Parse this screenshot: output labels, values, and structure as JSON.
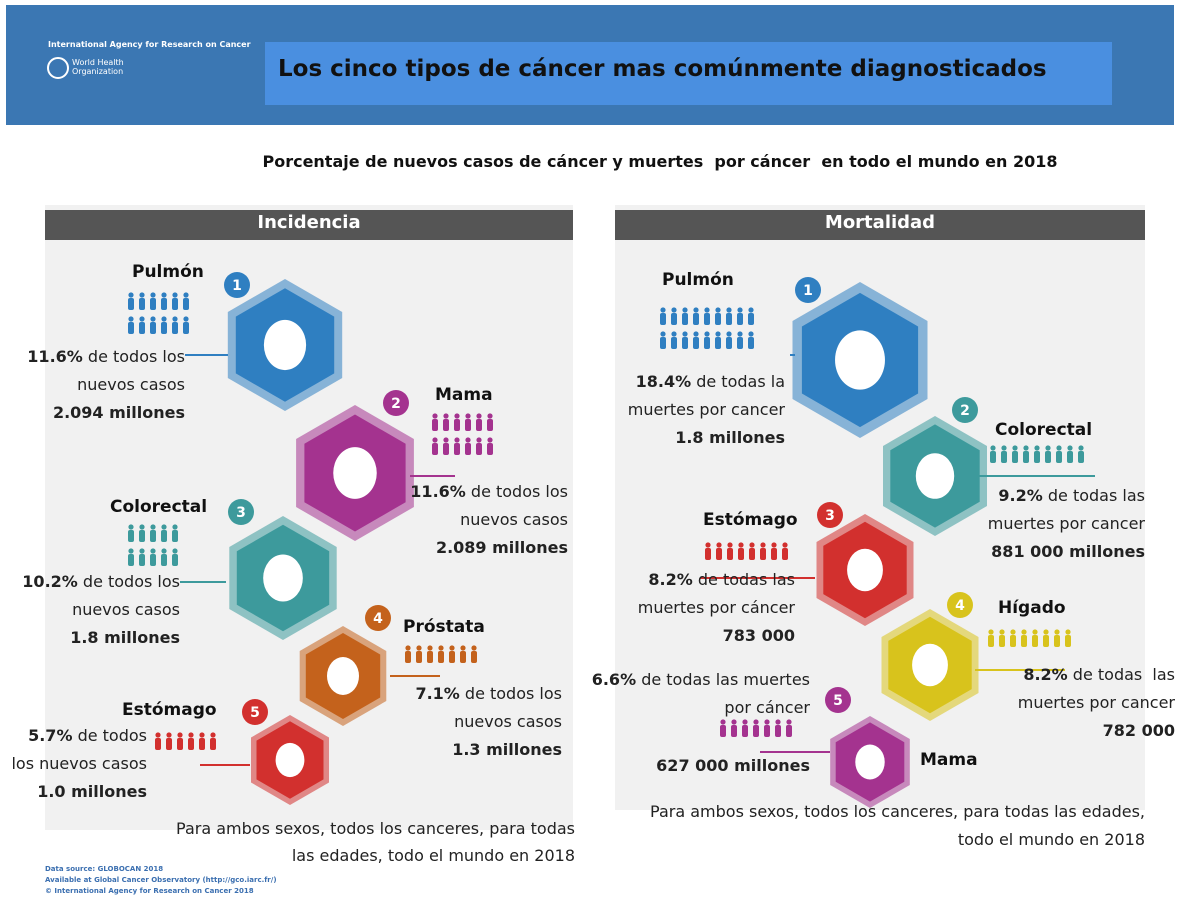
{
  "header": {
    "org": "International Agency for Research on Cancer",
    "who1": "World Health",
    "who2": "Organization",
    "title": "Los cinco tipos de cáncer mas comúnmente diagnosticados"
  },
  "subtitle": "Porcentaje de nuevos casos de cáncer y muertes  por cáncer  en todo el mundo en 2018",
  "panels": [
    {
      "title": "Incidencia",
      "items": [
        {
          "rank": "1",
          "name": "Pulmón",
          "percent": "11.6%",
          "text": "de todos los nuevos casos",
          "count": "2.094 millones",
          "color": "#2f7fc1"
        },
        {
          "rank": "2",
          "name": "Mama",
          "percent": "11.6%",
          "text": "de todos los nuevos casos",
          "count": "2.089 millones",
          "color": "#a4338f"
        },
        {
          "rank": "3",
          "name": "Colorectal",
          "percent": "10.2%",
          "text": "de todos los nuevos casos",
          "count": "1.8 millones",
          "color": "#3d9a9c"
        },
        {
          "rank": "4",
          "name": "Próstata",
          "percent": "7.1%",
          "text": "de todos los nuevos casos",
          "count": "1.3 millones",
          "color": "#c4621c"
        },
        {
          "rank": "5",
          "name": "Estómago",
          "percent": "5.7%",
          "text": "de todos los nuevos casos",
          "count": "1.0 millones",
          "color": "#d2302e"
        }
      ],
      "note": "Para ambos sexos, todos los canceres, para todas las edades, todo el mundo en 2018"
    },
    {
      "title": "Mortalidad",
      "items": [
        {
          "rank": "1",
          "name": "Pulmón",
          "percent": "18.4%",
          "text": "de todas la muertes por cancer",
          "count": "1.8 millones",
          "color": "#2f7fc1"
        },
        {
          "rank": "2",
          "name": "Colorectal",
          "percent": "9.2%",
          "text": "de todas las muertes por cancer",
          "count": "881 000 millones",
          "color": "#3d9a9c"
        },
        {
          "rank": "3",
          "name": "Estómago",
          "percent": "8.2%",
          "text": "de todas las muertes por cáncer",
          "count": "783 000",
          "color": "#d2302e"
        },
        {
          "rank": "4",
          "name": "Hígado",
          "percent": "8.2%",
          "text": "de todas  las muertes por cancer",
          "count": "782 000",
          "color": "#d8c31c"
        },
        {
          "rank": "5",
          "name": "Mama",
          "percent": "6.6%",
          "text": "de todas las muertes por cáncer",
          "count": "627 000 millones",
          "color": "#a4338f"
        }
      ],
      "note": "Para ambos sexos, todos los canceres, para todas las edades, todo el mundo en 2018"
    }
  ],
  "footer": [
    "Data source: GLOBOCAN 2018",
    "Available at Global Cancer Observatory (http://gco.iarc.fr/)",
    "© International Agency for Research on Cancer 2018"
  ]
}
